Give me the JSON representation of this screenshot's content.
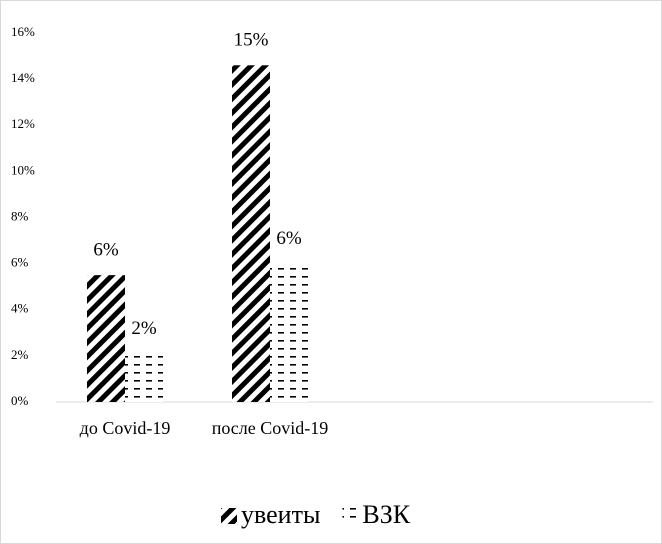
{
  "chart_data": {
    "type": "bar",
    "categories": [
      "до Covid-19",
      "после Covid-19"
    ],
    "series": [
      {
        "name": "увеиты",
        "color": "#000000",
        "pattern": "diagonal",
        "values": [
          5.5,
          14.6
        ],
        "value_labels": [
          "6%",
          "15%"
        ]
      },
      {
        "name": "ВЗК",
        "color": "#000000",
        "pattern": "dashed",
        "values": [
          2.1,
          6.0
        ],
        "value_labels": [
          "2%",
          "6%"
        ]
      }
    ],
    "ylim": [
      0,
      16
    ],
    "yticks": [
      {
        "value": 0,
        "label": "0%"
      },
      {
        "value": 2,
        "label": "2%"
      },
      {
        "value": 4,
        "label": "4%"
      },
      {
        "value": 6,
        "label": "6%"
      },
      {
        "value": 8,
        "label": "8%"
      },
      {
        "value": 10,
        "label": "10%"
      },
      {
        "value": 12,
        "label": "12%"
      },
      {
        "value": 14,
        "label": "14%"
      },
      {
        "value": 16,
        "label": "16%"
      }
    ],
    "grid": false,
    "legend": "bottom"
  }
}
